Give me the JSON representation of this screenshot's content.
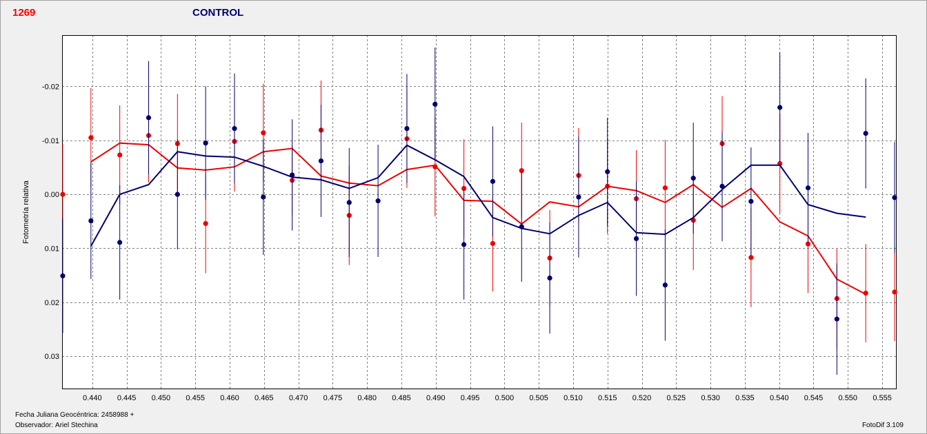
{
  "header": {
    "object_id": "1269",
    "title": "CONTROL"
  },
  "footer": {
    "jd_label": "Fecha Juliana Geocéntrica:",
    "jd_value": "2458988 +",
    "observer_label": "Observador:",
    "observer_value": "Ariel Stechina",
    "software": "FotoDif 3.109"
  },
  "colors": {
    "background": "#f0f0f0",
    "plot_bg": "#ffffff",
    "red_series": "#ee0000",
    "blue_series": "#000070",
    "grid": "#808080"
  },
  "chart_data": {
    "type": "scatter",
    "title": "CONTROL",
    "xlabel": "",
    "ylabel": "Fotometría relativa",
    "xlim": [
      0.4356,
      0.5571
    ],
    "ylim": [
      -0.0295,
      0.0361
    ],
    "y_inverted": true,
    "grid": true,
    "x_ticks": [
      0.44,
      0.445,
      0.45,
      0.455,
      0.46,
      0.465,
      0.47,
      0.475,
      0.48,
      0.485,
      0.49,
      0.495,
      0.5,
      0.505,
      0.51,
      0.515,
      0.52,
      0.525,
      0.53,
      0.535,
      0.54,
      0.545,
      0.55,
      0.555
    ],
    "x_tick_labels": [
      "0.440",
      "0.445",
      "0.450",
      "0.455",
      "0.460",
      "0.465",
      "0.470",
      "0.475",
      "0.480",
      "0.485",
      "0.490",
      "0.495",
      "0.500",
      "0.505",
      "0.510",
      "0.515",
      "0.520",
      "0.525",
      "0.530",
      "0.535",
      "0.540",
      "0.545",
      "0.550",
      "0.555"
    ],
    "y_ticks": [
      -0.02,
      -0.01,
      0.0,
      0.01,
      0.02,
      0.03
    ],
    "y_tick_labels": [
      "-0.02",
      "-0.01",
      "0.00",
      "0.01",
      "0.02",
      "0.03"
    ],
    "series": [
      {
        "key": "red",
        "color": "#ee0000",
        "x": [
          0.4357,
          0.4398,
          0.444,
          0.4482,
          0.4524,
          0.4565,
          0.4607,
          0.4649,
          0.4691,
          0.4733,
          0.4774,
          0.4816,
          0.4858,
          0.4899,
          0.4941,
          0.4983,
          0.5025,
          0.5066,
          0.5108,
          0.515,
          0.5192,
          0.5234,
          0.5275,
          0.5317,
          0.5359,
          0.5401,
          0.5442,
          0.5484,
          0.5526,
          0.5568
        ],
        "y": [
          0.0,
          -0.0105,
          -0.0073,
          -0.0109,
          -0.0094,
          0.0054,
          -0.0098,
          -0.0114,
          -0.0026,
          -0.0119,
          0.0039,
          null,
          -0.0103,
          -0.0051,
          -0.0011,
          0.0091,
          -0.0044,
          0.0118,
          -0.0035,
          -0.0015,
          0.0008,
          -0.0012,
          0.0048,
          -0.0094,
          0.0117,
          -0.0057,
          0.0092,
          0.0193,
          0.0183,
          0.0181
        ],
        "err": [
          0.0094,
          0.0092,
          0.0092,
          0.0087,
          0.0092,
          0.0092,
          0.0093,
          0.0091,
          0.0064,
          0.0092,
          0.0092,
          null,
          0.0091,
          0.0092,
          0.0091,
          0.0089,
          0.0089,
          0.0089,
          0.0088,
          0.0088,
          0.009,
          0.0089,
          0.0092,
          0.0088,
          0.0092,
          0.0092,
          0.0091,
          0.0092,
          0.0091,
          0.0091
        ],
        "trend_x": [
          0.4398,
          0.444,
          0.4482,
          0.4524,
          0.4565,
          0.4607,
          0.4649,
          0.4691,
          0.4733,
          0.4774,
          0.4816,
          0.4858,
          0.4899,
          0.4941,
          0.4983,
          0.5025,
          0.5066,
          0.5108,
          0.515,
          0.5192,
          0.5234,
          0.5275,
          0.5317,
          0.5359,
          0.5401,
          0.5442,
          0.5484,
          0.5526
        ],
        "trend_y": [
          -0.006,
          -0.0095,
          -0.0092,
          -0.0049,
          -0.0045,
          -0.0051,
          -0.0079,
          -0.0085,
          -0.0034,
          -0.0021,
          -0.0016,
          -0.0046,
          -0.0054,
          0.0011,
          0.0013,
          0.0055,
          0.0014,
          0.0023,
          -0.0015,
          -0.0007,
          0.0015,
          -0.0018,
          0.0024,
          -0.0011,
          0.0051,
          0.0077,
          0.0157,
          0.0185
        ]
      },
      {
        "key": "blue",
        "color": "#000070",
        "x": [
          0.4357,
          0.4398,
          0.444,
          0.4482,
          0.4524,
          0.4565,
          0.4607,
          0.4649,
          0.4691,
          0.4733,
          0.4774,
          0.4816,
          0.4858,
          0.4899,
          0.4941,
          0.4983,
          0.5025,
          0.5066,
          0.5108,
          0.515,
          0.5192,
          0.5234,
          0.5275,
          0.5317,
          0.5359,
          0.5401,
          0.5442,
          0.5484,
          0.5526,
          0.5568
        ],
        "y": [
          0.0151,
          0.0049,
          0.0089,
          -0.0142,
          0.0,
          -0.0095,
          -0.0122,
          0.0005,
          -0.0036,
          -0.0062,
          0.0015,
          0.0012,
          -0.0122,
          -0.0167,
          0.0093,
          -0.0024,
          0.006,
          0.0155,
          0.0005,
          -0.0042,
          0.0082,
          0.0168,
          -0.003,
          -0.0015,
          0.0013,
          -0.0161,
          -0.0012,
          0.0231,
          -0.0113,
          0.0006
        ],
        "err": [
          0.0106,
          0.0108,
          0.0106,
          0.0105,
          0.0102,
          0.0105,
          0.0102,
          0.0107,
          0.0103,
          0.0104,
          0.0101,
          0.0104,
          0.0101,
          0.0105,
          0.0102,
          0.0102,
          0.0102,
          0.0103,
          0.0112,
          0.01,
          0.0106,
          0.0103,
          0.0103,
          0.0102,
          0.01,
          0.0102,
          0.0102,
          0.0103,
          0.0102,
          0.0103
        ],
        "trend_x": [
          0.4398,
          0.444,
          0.4482,
          0.4524,
          0.4565,
          0.4607,
          0.4649,
          0.4691,
          0.4733,
          0.4774,
          0.4816,
          0.4858,
          0.4899,
          0.4941,
          0.4983,
          0.5025,
          0.5066,
          0.5108,
          0.515,
          0.5192,
          0.5234,
          0.5275,
          0.5317,
          0.5359,
          0.5401,
          0.5442,
          0.5484,
          0.5526
        ],
        "trend_y": [
          0.0096,
          0.0,
          -0.0018,
          -0.0079,
          -0.0071,
          -0.0069,
          -0.0052,
          -0.0032,
          -0.0027,
          -0.0011,
          -0.0031,
          -0.0091,
          -0.0064,
          -0.0033,
          0.0043,
          0.0063,
          0.0073,
          0.0039,
          0.0015,
          0.0071,
          0.0074,
          0.0043,
          -0.0009,
          -0.0054,
          -0.0054,
          0.0019,
          0.0035,
          0.0042
        ]
      }
    ]
  }
}
